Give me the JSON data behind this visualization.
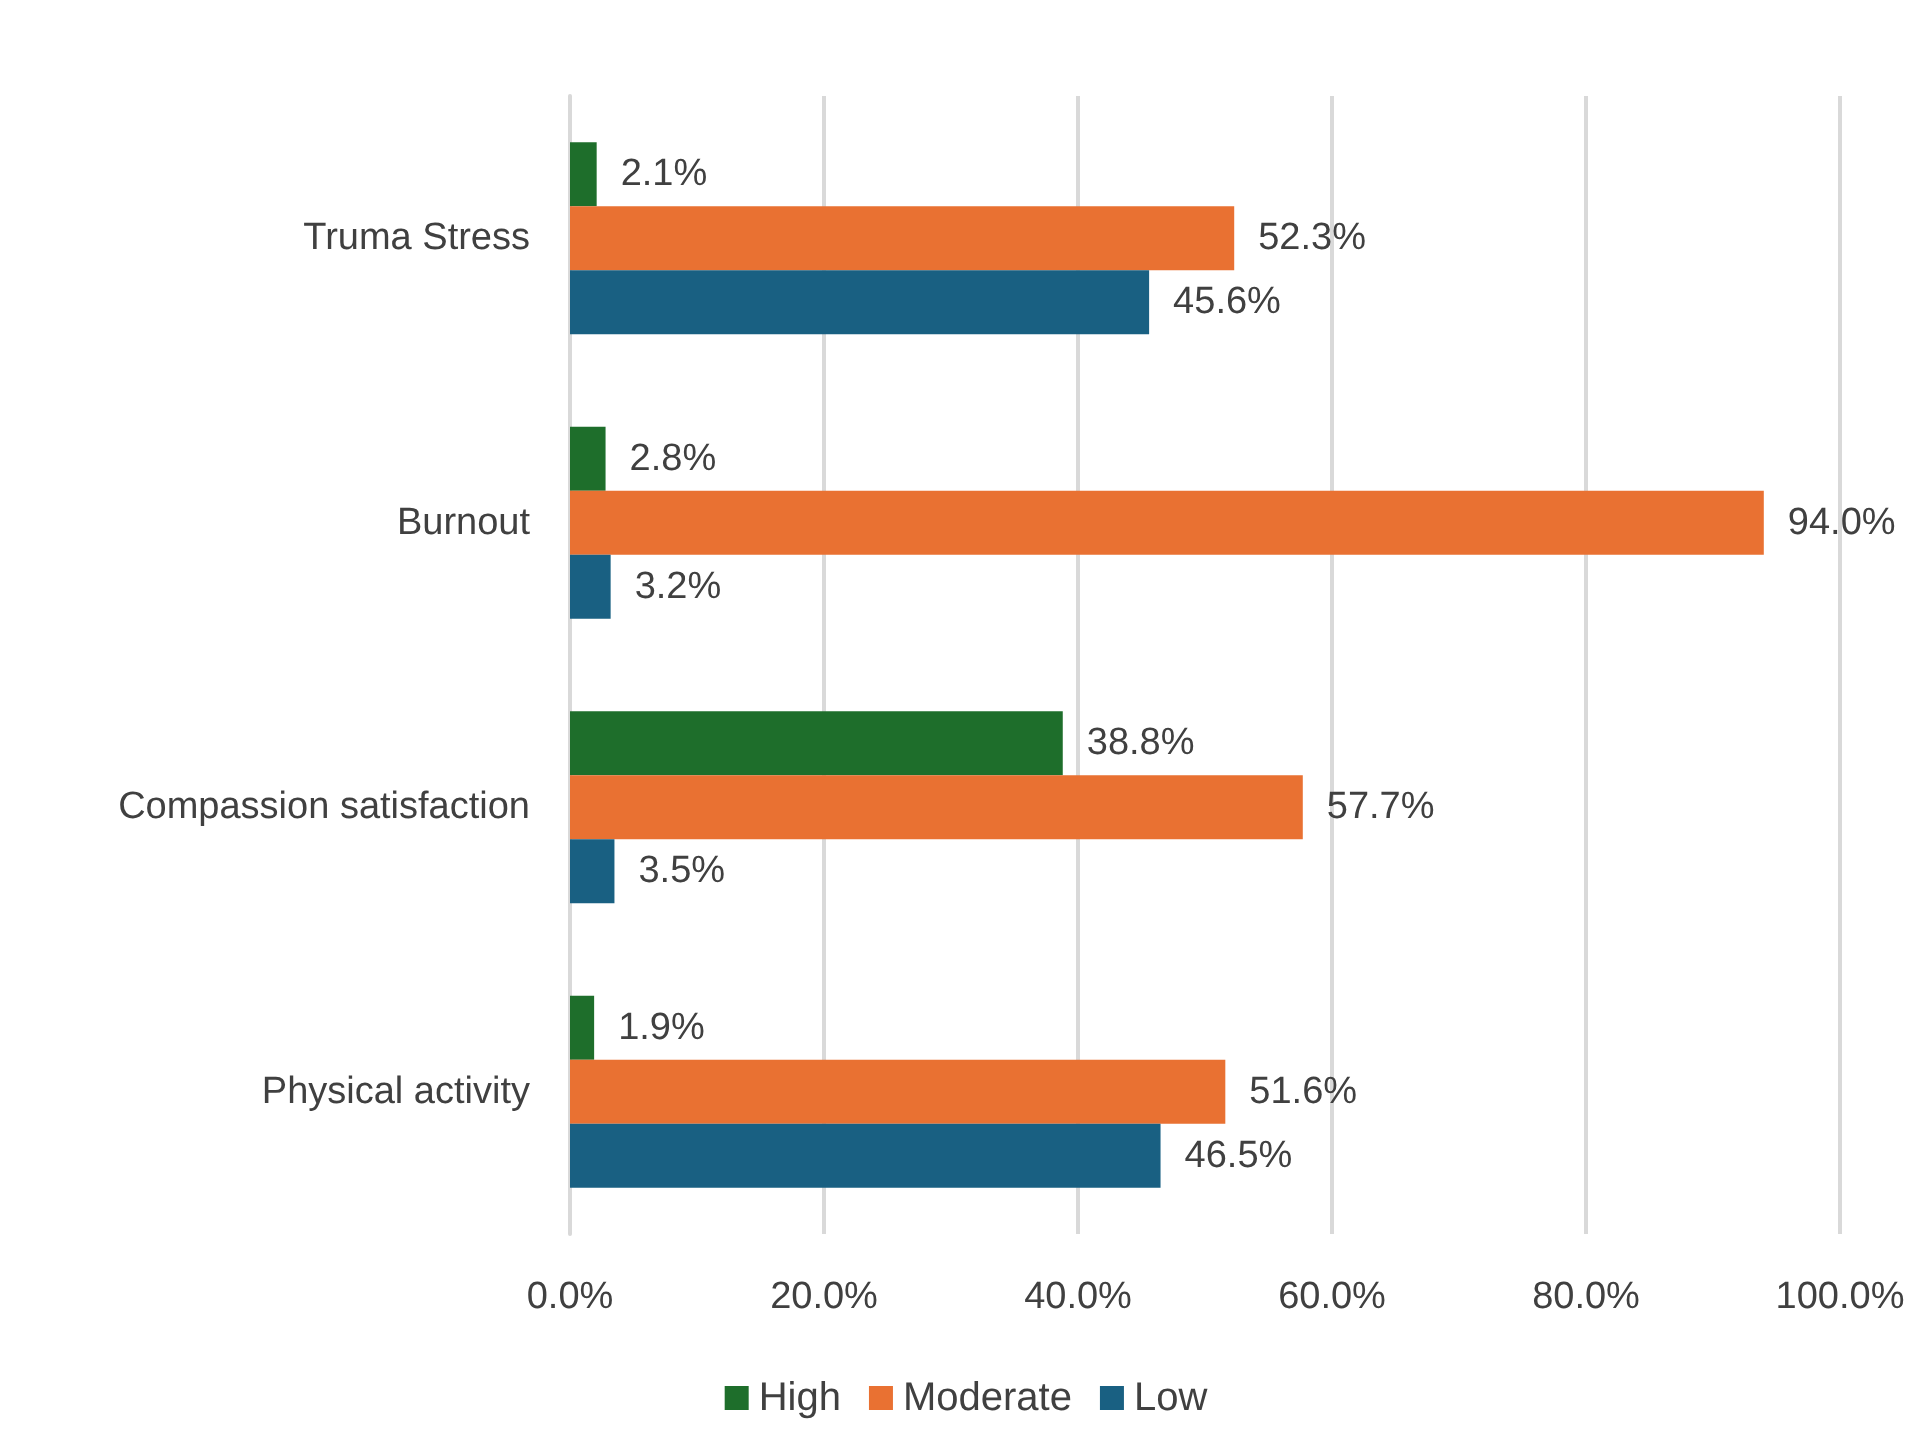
{
  "chart_data": {
    "type": "bar",
    "orientation": "horizontal",
    "categories": [
      "Truma Stress",
      "Burnout",
      "Compassion satisfaction",
      "Physical activity"
    ],
    "series": [
      {
        "name": "High",
        "color": "#1e6e2b",
        "values": [
          2.1,
          2.8,
          38.8,
          1.9
        ],
        "value_labels": [
          "2.1%",
          "2.8%",
          "38.8%",
          "1.9%"
        ]
      },
      {
        "name": "Moderate",
        "color": "#e97132",
        "values": [
          52.3,
          94.0,
          57.7,
          51.6
        ],
        "value_labels": [
          "52.3%",
          "94.0%",
          "57.7%",
          "51.6%"
        ]
      },
      {
        "name": "Low",
        "color": "#196082",
        "values": [
          45.6,
          3.2,
          3.5,
          46.5
        ],
        "value_labels": [
          "45.6%",
          "3.2%",
          "3.5%",
          "46.5%"
        ]
      }
    ],
    "xlim": [
      0,
      100
    ],
    "xticks": [
      {
        "value": 0,
        "label": "0.0%"
      },
      {
        "value": 20,
        "label": "20.0%"
      },
      {
        "value": 40,
        "label": "40.0%"
      },
      {
        "value": 60,
        "label": "60.0%"
      },
      {
        "value": 80,
        "label": "80.0%"
      },
      {
        "value": 100,
        "label": "100.0%"
      }
    ],
    "grid": "x",
    "legend": "bottom"
  }
}
